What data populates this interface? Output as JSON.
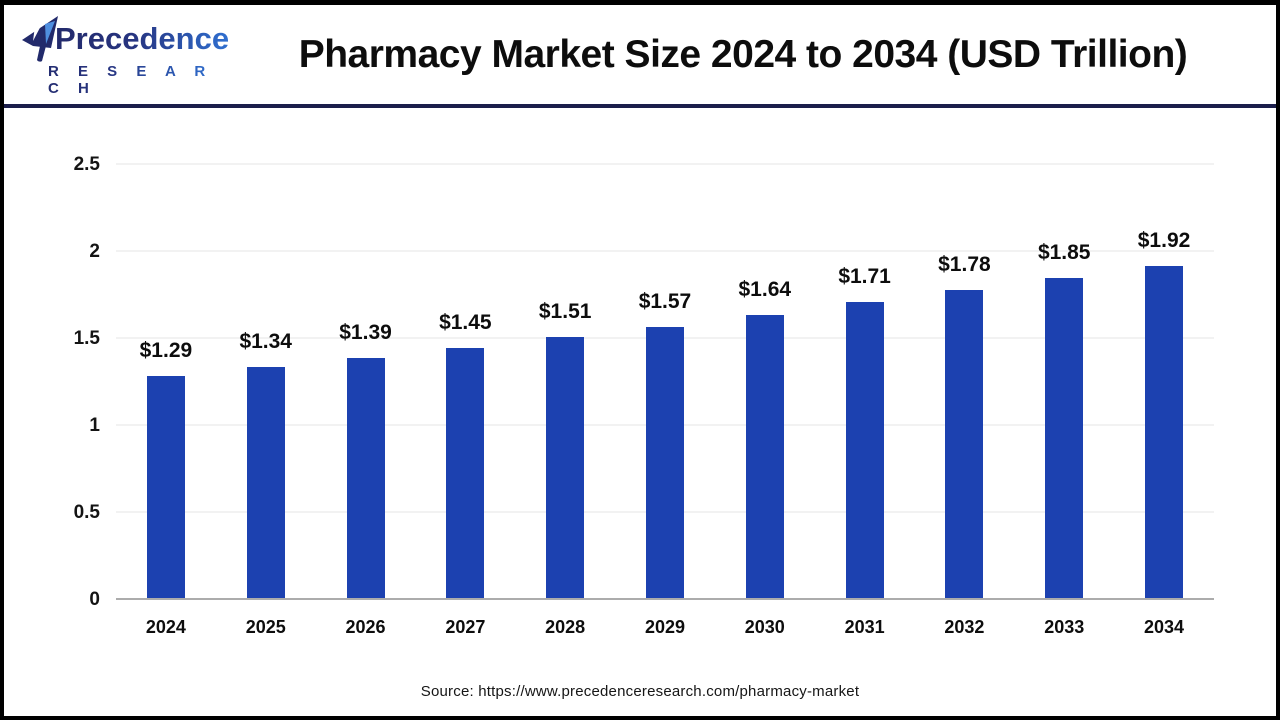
{
  "header": {
    "logo": {
      "name": "Precedence",
      "subname": "R E S E A R C H"
    },
    "title": "Pharmacy Market Size 2024 to 2034 (USD Trillion)"
  },
  "chart_data": {
    "type": "bar",
    "title": "Pharmacy Market Size 2024 to 2034 (USD Trillion)",
    "categories": [
      "2024",
      "2025",
      "2026",
      "2027",
      "2028",
      "2029",
      "2030",
      "2031",
      "2032",
      "2033",
      "2034"
    ],
    "values": [
      1.29,
      1.34,
      1.39,
      1.45,
      1.51,
      1.57,
      1.64,
      1.71,
      1.78,
      1.85,
      1.92
    ],
    "value_labels": [
      "$1.29",
      "$1.34",
      "$1.39",
      "$1.45",
      "$1.51",
      "$1.57",
      "$1.64",
      "$1.71",
      "$1.78",
      "$1.85",
      "$1.92"
    ],
    "xlabel": "",
    "ylabel": "",
    "ylim": [
      0,
      2.5
    ],
    "yticks": [
      0,
      0.5,
      1,
      1.5,
      2,
      2.5
    ],
    "ytick_labels": [
      "0",
      "0.5",
      "1",
      "1.5",
      "2",
      "2.5"
    ],
    "grid": true,
    "legend": null,
    "bar_color": "#1c41b0"
  },
  "footer": {
    "source": "Source: https://www.precedenceresearch.com/pharmacy-market"
  },
  "colors": {
    "bar": "#1c41b0",
    "header_divider": "#1b1e4b",
    "frame": "#000000",
    "gridline": "#f2f2f2",
    "baseline": "#acacac",
    "logo_dark": "#232a6b",
    "logo_light": "#2f6fd0"
  }
}
